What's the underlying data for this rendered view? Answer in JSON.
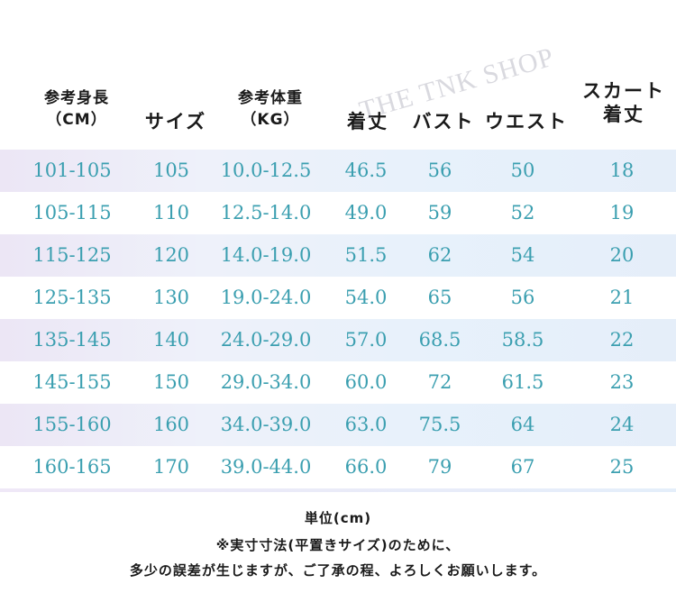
{
  "headers": {
    "height_l1": "参考身長",
    "height_l2": "（CM）",
    "size": "サイズ",
    "weight_l1": "参考体重",
    "weight_l2": "（KG）",
    "length": "着丈",
    "bust": "バスト",
    "waist": "ウエスト",
    "skirt_l1": "スカート",
    "skirt_l2": "着丈"
  },
  "watermark": "THE TNK SHOP",
  "rows": [
    {
      "height": "101-105",
      "size": "105",
      "weight": "10.0-12.5",
      "length": "46.5",
      "bust": "56",
      "waist": "50",
      "skirt": "18"
    },
    {
      "height": "105-115",
      "size": "110",
      "weight": "12.5-14.0",
      "length": "49.0",
      "bust": "59",
      "waist": "52",
      "skirt": "19"
    },
    {
      "height": "115-125",
      "size": "120",
      "weight": "14.0-19.0",
      "length": "51.5",
      "bust": "62",
      "waist": "54",
      "skirt": "20"
    },
    {
      "height": "125-135",
      "size": "130",
      "weight": "19.0-24.0",
      "length": "54.0",
      "bust": "65",
      "waist": "56",
      "skirt": "21"
    },
    {
      "height": "135-145",
      "size": "140",
      "weight": "24.0-29.0",
      "length": "57.0",
      "bust": "68.5",
      "waist": "58.5",
      "skirt": "22"
    },
    {
      "height": "145-155",
      "size": "150",
      "weight": "29.0-34.0",
      "length": "60.0",
      "bust": "72",
      "waist": "61.5",
      "skirt": "23"
    },
    {
      "height": "155-160",
      "size": "160",
      "weight": "34.0-39.0",
      "length": "63.0",
      "bust": "75.5",
      "waist": "64",
      "skirt": "24"
    },
    {
      "height": "160-165",
      "size": "170",
      "weight": "39.0-44.0",
      "length": "66.0",
      "bust": "79",
      "waist": "67",
      "skirt": "25"
    }
  ],
  "notes": {
    "unit": "単位(cm)",
    "line1": "※実寸寸法(平置きサイズ)のために、",
    "line2": "多少の誤差が生じますが、ご了承の程、よろしくお願いします。"
  },
  "colors": {
    "value_text": "#3b9fb0",
    "header_text": "#1a1a1a",
    "band": "#eceff9"
  }
}
